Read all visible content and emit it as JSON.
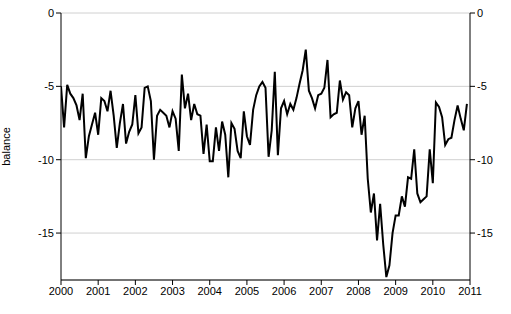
{
  "chart_data": {
    "type": "line",
    "y_label": "balance",
    "color": "#000000",
    "grid": true,
    "xlim": [
      2000,
      2011
    ],
    "xticks": [
      2000,
      2001,
      2002,
      2003,
      2004,
      2005,
      2006,
      2007,
      2008,
      2009,
      2010,
      2011
    ],
    "ylim": [
      -18.2,
      0
    ],
    "yticks": [
      0,
      -5,
      -10,
      -15
    ],
    "x": [
      2000,
      2000.083,
      2000.167,
      2000.25,
      2000.333,
      2000.417,
      2000.5,
      2000.583,
      2000.667,
      2000.75,
      2000.833,
      2000.917,
      2001,
      2001.083,
      2001.167,
      2001.25,
      2001.333,
      2001.417,
      2001.5,
      2001.583,
      2001.667,
      2001.75,
      2001.833,
      2001.917,
      2002,
      2002.083,
      2002.167,
      2002.25,
      2002.333,
      2002.417,
      2002.5,
      2002.583,
      2002.667,
      2002.75,
      2002.833,
      2002.917,
      2003,
      2003.083,
      2003.167,
      2003.25,
      2003.333,
      2003.417,
      2003.5,
      2003.583,
      2003.667,
      2003.75,
      2003.833,
      2003.917,
      2004,
      2004.083,
      2004.167,
      2004.25,
      2004.333,
      2004.417,
      2004.5,
      2004.583,
      2004.667,
      2004.75,
      2004.833,
      2004.917,
      2005,
      2005.083,
      2005.167,
      2005.25,
      2005.333,
      2005.417,
      2005.5,
      2005.583,
      2005.667,
      2005.75,
      2005.833,
      2005.917,
      2006,
      2006.083,
      2006.167,
      2006.25,
      2006.333,
      2006.417,
      2006.5,
      2006.583,
      2006.667,
      2006.75,
      2006.833,
      2006.917,
      2007,
      2007.083,
      2007.167,
      2007.25,
      2007.333,
      2007.417,
      2007.5,
      2007.583,
      2007.667,
      2007.75,
      2007.833,
      2007.917,
      2008,
      2008.083,
      2008.167,
      2008.25,
      2008.333,
      2008.417,
      2008.5,
      2008.583,
      2008.667,
      2008.75,
      2008.833,
      2008.917,
      2009,
      2009.083,
      2009.167,
      2009.25,
      2009.333,
      2009.417,
      2009.5,
      2009.583,
      2009.667,
      2009.75,
      2009.833,
      2009.917,
      2010,
      2010.083,
      2010.167,
      2010.25,
      2010.333,
      2010.417,
      2010.5,
      2010.583,
      2010.667,
      2010.75,
      2010.833,
      2010.917
    ],
    "values": [
      -5.0,
      -7.8,
      -4.9,
      -5.5,
      -5.8,
      -6.3,
      -7.3,
      -5.5,
      -9.9,
      -8.4,
      -7.6,
      -6.8,
      -8.3,
      -5.8,
      -6.0,
      -6.7,
      -5.3,
      -7.0,
      -9.2,
      -7.5,
      -6.2,
      -8.9,
      -8.1,
      -7.6,
      -5.6,
      -8.2,
      -7.8,
      -5.1,
      -5.0,
      -6.0,
      -10.0,
      -7.0,
      -6.6,
      -6.8,
      -7.0,
      -7.8,
      -6.7,
      -7.2,
      -9.4,
      -4.2,
      -6.5,
      -5.5,
      -7.3,
      -6.2,
      -6.9,
      -7.0,
      -9.6,
      -7.6,
      -10.1,
      -10.1,
      -7.8,
      -9.4,
      -7.4,
      -8.3,
      -11.2,
      -7.5,
      -7.9,
      -9.4,
      -9.9,
      -6.7,
      -8.4,
      -9.0,
      -6.6,
      -5.6,
      -5.0,
      -4.7,
      -5.1,
      -9.8,
      -8.0,
      -4.0,
      -9.7,
      -6.5,
      -6.0,
      -6.9,
      -6.2,
      -6.6,
      -5.8,
      -4.8,
      -3.9,
      -2.5,
      -5.3,
      -5.8,
      -6.5,
      -5.6,
      -5.5,
      -5.1,
      -3.2,
      -7.1,
      -6.9,
      -6.8,
      -4.6,
      -5.9,
      -5.4,
      -5.6,
      -7.8,
      -6.5,
      -6.0,
      -8.3,
      -7.0,
      -11.3,
      -13.6,
      -12.3,
      -15.5,
      -13.0,
      -15.8,
      -18.0,
      -17.2,
      -15.0,
      -13.8,
      -13.8,
      -12.5,
      -13.2,
      -11.2,
      -11.3,
      -9.3,
      -12.3,
      -12.9,
      -12.7,
      -12.5,
      -9.3,
      -11.6,
      -6.1,
      -6.4,
      -7.1,
      -9.0,
      -8.6,
      -8.5,
      -7.3,
      -6.3,
      -7.2,
      -8.0,
      -6.2
    ]
  }
}
